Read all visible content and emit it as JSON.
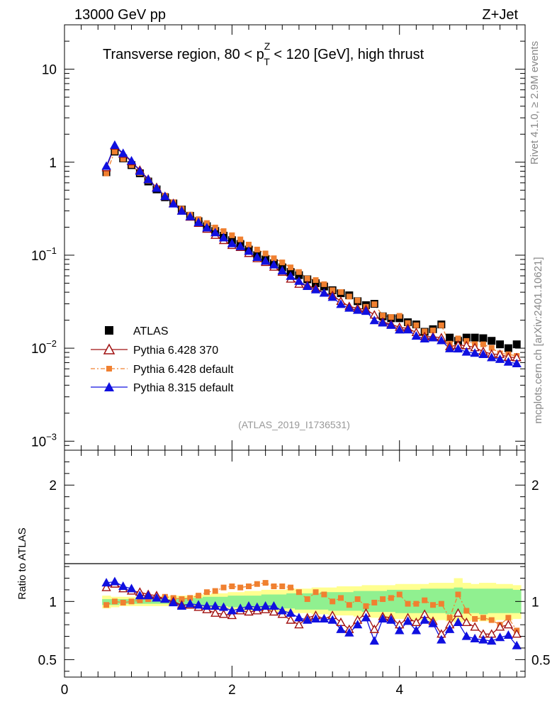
{
  "header": {
    "left": "13000 GeV pp",
    "right": "Z+Jet"
  },
  "plot_title": {
    "prefix": "Transverse region, 80 < p",
    "sup": "Z",
    "sub": "T",
    "suffix": " < 120 [GeV], high thrust"
  },
  "side_labels": {
    "rivet": "Rivet 4.1.0, ≥ 2.9M events",
    "mcplots": "mcplots.cern.ch [arXiv:2401.10621]"
  },
  "analysis_tag": "(ATLAS_2019_I1736531)",
  "ratio_ylabel": "Ratio to ATLAS",
  "colors": {
    "atlas": "#000000",
    "py6_370": "#a01010",
    "py6_default": "#f08030",
    "py8": "#1010e0",
    "band_yellow": "#ffff90",
    "band_green": "#90f090"
  },
  "chart_data": {
    "type": "scatter",
    "main": {
      "yscale": "log",
      "xlim": [
        0,
        5.5
      ],
      "ylim": [
        0.0008,
        30
      ],
      "y_ticks": [
        {
          "value": 10,
          "base": "10",
          "exp": ""
        },
        {
          "value": 1,
          "base": "1",
          "exp": ""
        },
        {
          "value": 0.1,
          "base": "10",
          "exp": "−1"
        },
        {
          "value": 0.01,
          "base": "10",
          "exp": "−2"
        },
        {
          "value": 0.001,
          "base": "10",
          "exp": "−3"
        }
      ]
    },
    "ratio": {
      "ylim": [
        0.35,
        2.3
      ],
      "y_ticks": [
        "0.5",
        "1",
        "2"
      ],
      "x_ticks": [
        "0",
        "2",
        "4"
      ]
    },
    "x": [
      0.5,
      0.6,
      0.7,
      0.8,
      0.9,
      1.0,
      1.1,
      1.2,
      1.3,
      1.4,
      1.5,
      1.6,
      1.7,
      1.8,
      1.9,
      2.0,
      2.1,
      2.2,
      2.3,
      2.4,
      2.5,
      2.6,
      2.7,
      2.8,
      2.9,
      3.0,
      3.1,
      3.2,
      3.3,
      3.4,
      3.5,
      3.6,
      3.7,
      3.8,
      3.9,
      4.0,
      4.1,
      4.2,
      4.3,
      4.4,
      4.5,
      4.6,
      4.7,
      4.8,
      4.9,
      5.0,
      5.1,
      5.2,
      5.3,
      5.4
    ],
    "series": [
      {
        "name": "ATLAS",
        "marker": "square",
        "values": [
          0.78,
          1.3,
          1.1,
          0.93,
          0.76,
          0.62,
          0.51,
          0.42,
          0.36,
          0.31,
          0.265,
          0.232,
          0.205,
          0.182,
          0.162,
          0.145,
          0.132,
          0.115,
          0.1,
          0.09,
          0.082,
          0.074,
          0.066,
          0.061,
          0.055,
          0.05,
          0.046,
          0.042,
          0.039,
          0.037,
          0.032,
          0.029,
          0.03,
          0.022,
          0.021,
          0.021,
          0.019,
          0.018,
          0.015,
          0.016,
          0.018,
          0.013,
          0.012,
          0.013,
          0.013,
          0.0128,
          0.012,
          0.011,
          0.01,
          0.011
        ]
      },
      {
        "name": "Pythia 6.428 370",
        "marker": "triangle-open",
        "ratio": [
          1.12,
          1.15,
          1.11,
          1.09,
          1.08,
          1.06,
          1.05,
          1.02,
          1.0,
          0.97,
          0.97,
          0.95,
          0.93,
          0.9,
          0.89,
          0.88,
          0.92,
          0.91,
          0.92,
          0.93,
          0.91,
          0.89,
          0.84,
          0.8,
          0.86,
          0.88,
          0.85,
          0.88,
          0.82,
          0.76,
          0.84,
          0.9,
          0.76,
          0.87,
          0.86,
          0.8,
          0.86,
          0.82,
          0.89,
          0.83,
          0.72,
          0.8,
          0.9,
          0.82,
          0.78,
          0.72,
          0.72,
          0.78,
          0.8,
          0.72
        ]
      },
      {
        "name": "Pythia 6.428 default",
        "marker": "square-small",
        "ratio": [
          0.97,
          1.0,
          0.99,
          1.0,
          1.01,
          1.02,
          1.03,
          1.04,
          1.03,
          1.02,
          1.03,
          1.05,
          1.08,
          1.09,
          1.12,
          1.13,
          1.12,
          1.13,
          1.15,
          1.16,
          1.13,
          1.13,
          1.12,
          1.08,
          1.02,
          1.08,
          1.06,
          1.0,
          1.03,
          0.97,
          1.02,
          0.96,
          0.99,
          1.02,
          1.03,
          1.06,
          0.98,
          0.98,
          1.01,
          0.97,
          0.98,
          0.86,
          1.06,
          0.92,
          0.85,
          0.86,
          0.84,
          0.8,
          0.86,
          0.75
        ]
      },
      {
        "name": "Pythia 8.315 default",
        "marker": "triangle",
        "ratio": [
          1.16,
          1.17,
          1.13,
          1.11,
          1.05,
          1.05,
          1.03,
          1.02,
          0.99,
          0.96,
          0.98,
          0.97,
          0.96,
          0.96,
          0.95,
          0.92,
          0.94,
          0.96,
          0.95,
          0.96,
          0.96,
          0.92,
          0.9,
          0.86,
          0.84,
          0.85,
          0.85,
          0.84,
          0.76,
          0.73,
          0.8,
          0.86,
          0.66,
          0.85,
          0.84,
          0.75,
          0.83,
          0.75,
          0.84,
          0.81,
          0.67,
          0.76,
          0.82,
          0.7,
          0.68,
          0.67,
          0.66,
          0.69,
          0.71,
          0.62
        ]
      }
    ],
    "bands": {
      "yellow_lo": [
        0.94,
        0.95,
        0.96,
        0.96,
        0.96,
        0.96,
        0.96,
        0.96,
        0.96,
        0.96,
        0.95,
        0.95,
        0.94,
        0.94,
        0.93,
        0.93,
        0.92,
        0.92,
        0.92,
        0.91,
        0.91,
        0.91,
        0.9,
        0.9,
        0.9,
        0.89,
        0.89,
        0.88,
        0.88,
        0.88,
        0.87,
        0.87,
        0.86,
        0.86,
        0.85,
        0.85,
        0.85,
        0.84,
        0.84,
        0.83,
        0.84,
        0.83,
        0.82,
        0.83,
        0.84,
        0.83,
        0.83,
        0.84,
        0.84,
        0.85
      ],
      "yellow_hi": [
        1.05,
        1.04,
        1.04,
        1.04,
        1.04,
        1.04,
        1.04,
        1.05,
        1.05,
        1.05,
        1.05,
        1.06,
        1.06,
        1.07,
        1.07,
        1.08,
        1.08,
        1.09,
        1.09,
        1.1,
        1.1,
        1.1,
        1.11,
        1.11,
        1.11,
        1.12,
        1.12,
        1.12,
        1.13,
        1.13,
        1.13,
        1.14,
        1.14,
        1.14,
        1.14,
        1.15,
        1.15,
        1.15,
        1.15,
        1.16,
        1.16,
        1.16,
        1.2,
        1.16,
        1.15,
        1.16,
        1.16,
        1.15,
        1.15,
        1.14
      ],
      "green_lo": [
        0.97,
        0.97,
        0.98,
        0.98,
        0.98,
        0.98,
        0.98,
        0.98,
        0.98,
        0.97,
        0.97,
        0.97,
        0.96,
        0.96,
        0.96,
        0.95,
        0.95,
        0.95,
        0.95,
        0.94,
        0.94,
        0.94,
        0.94,
        0.93,
        0.93,
        0.93,
        0.93,
        0.92,
        0.92,
        0.92,
        0.92,
        0.91,
        0.91,
        0.91,
        0.91,
        0.9,
        0.9,
        0.9,
        0.9,
        0.9,
        0.9,
        0.89,
        0.89,
        0.9,
        0.9,
        0.89,
        0.9,
        0.9,
        0.9,
        0.9
      ],
      "green_hi": [
        1.02,
        1.02,
        1.02,
        1.02,
        1.02,
        1.02,
        1.02,
        1.02,
        1.02,
        1.03,
        1.03,
        1.03,
        1.04,
        1.04,
        1.04,
        1.05,
        1.05,
        1.05,
        1.05,
        1.06,
        1.06,
        1.06,
        1.07,
        1.07,
        1.07,
        1.07,
        1.08,
        1.08,
        1.08,
        1.08,
        1.09,
        1.09,
        1.09,
        1.09,
        1.1,
        1.1,
        1.1,
        1.1,
        1.11,
        1.11,
        1.11,
        1.11,
        1.12,
        1.11,
        1.11,
        1.11,
        1.11,
        1.11,
        1.11,
        1.1
      ]
    }
  }
}
